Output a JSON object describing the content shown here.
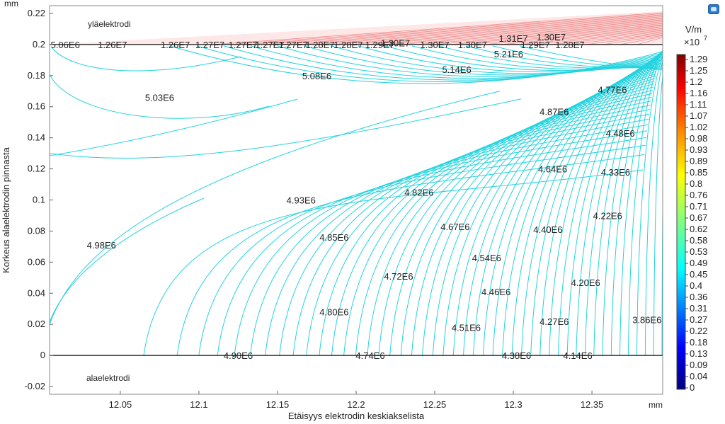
{
  "chart_data": {
    "type": "contour",
    "units": {
      "x": "mm",
      "y": "mm"
    },
    "xlabel": "Etäisyys elektrodin keskiakselista",
    "ylabel": "Korkeus alaelektrodin pinnasta",
    "xlim": [
      12.005,
      12.395
    ],
    "ylim": [
      -0.025,
      0.225
    ],
    "x_ticks": [
      "12.05",
      "12.1",
      "12.15",
      "12.2",
      "12.25",
      "12.3",
      "12.35"
    ],
    "y_ticks": [
      "-0.02",
      "0",
      "0.02",
      "0.04",
      "0.06",
      "0.08",
      "0.1",
      "0.12",
      "0.14",
      "0.16",
      "0.18",
      "0.2",
      "0.22"
    ],
    "region_labels": {
      "upper": "yläelektrodi",
      "lower": "alaelektrodi"
    },
    "colorbar": {
      "unit": "V/m",
      "multiplier": "×10",
      "exponent": "7",
      "ticks": [
        "1.29",
        "1.25",
        "1.2",
        "1.16",
        "1.11",
        "1.07",
        "1.02",
        "0.98",
        "0.93",
        "0.89",
        "0.85",
        "0.8",
        "0.76",
        "0.71",
        "0.67",
        "0.62",
        "0.58",
        "0.53",
        "0.49",
        "0.45",
        "0.4",
        "0.36",
        "0.31",
        "0.27",
        "0.22",
        "0.18",
        "0.13",
        "0.09",
        "0.04",
        "0"
      ],
      "colors": [
        "#000080",
        "#0000ff",
        "#00bfff",
        "#00ffff",
        "#7fff7f",
        "#ffff00",
        "#ff7f00",
        "#ff0000",
        "#800000"
      ]
    },
    "contour_color": "#22d3df",
    "contour_labels": [
      {
        "text": "5.06E6",
        "x": 12.015,
        "y": 0.2
      },
      {
        "text": "1.26E7",
        "x": 12.045,
        "y": 0.2
      },
      {
        "text": "1.26E7",
        "x": 12.085,
        "y": 0.2
      },
      {
        "text": "1.27E7",
        "x": 12.107,
        "y": 0.2
      },
      {
        "text": "1.27E7",
        "x": 12.128,
        "y": 0.2
      },
      {
        "text": "1.27E7",
        "x": 12.145,
        "y": 0.2
      },
      {
        "text": "1.27E7",
        "x": 12.16,
        "y": 0.2
      },
      {
        "text": "1.28E7",
        "x": 12.177,
        "y": 0.2
      },
      {
        "text": "1.28E7",
        "x": 12.195,
        "y": 0.2
      },
      {
        "text": "1.29E7",
        "x": 12.215,
        "y": 0.2
      },
      {
        "text": "1.30E7",
        "x": 12.225,
        "y": 0.201
      },
      {
        "text": "1.30E7",
        "x": 12.25,
        "y": 0.2
      },
      {
        "text": "1.30E7",
        "x": 12.274,
        "y": 0.2
      },
      {
        "text": "1.31E7",
        "x": 12.3,
        "y": 0.204
      },
      {
        "text": "1.30E7",
        "x": 12.324,
        "y": 0.205
      },
      {
        "text": "1.29E7",
        "x": 12.314,
        "y": 0.2
      },
      {
        "text": "1.28E7",
        "x": 12.336,
        "y": 0.2
      },
      {
        "text": "5.21E6",
        "x": 12.297,
        "y": 0.194
      },
      {
        "text": "5.14E6",
        "x": 12.264,
        "y": 0.184
      },
      {
        "text": "5.08E6",
        "x": 12.175,
        "y": 0.18
      },
      {
        "text": "5.03E6",
        "x": 12.075,
        "y": 0.166
      },
      {
        "text": "4.77E6",
        "x": 12.363,
        "y": 0.171
      },
      {
        "text": "4.87E6",
        "x": 12.326,
        "y": 0.157
      },
      {
        "text": "4.48E6",
        "x": 12.368,
        "y": 0.143
      },
      {
        "text": "4.64E6",
        "x": 12.325,
        "y": 0.12
      },
      {
        "text": "4.33E6",
        "x": 12.365,
        "y": 0.118
      },
      {
        "text": "4.93E6",
        "x": 12.165,
        "y": 0.1
      },
      {
        "text": "4.82E6",
        "x": 12.24,
        "y": 0.105
      },
      {
        "text": "4.22E6",
        "x": 12.36,
        "y": 0.09
      },
      {
        "text": "4.67E6",
        "x": 12.263,
        "y": 0.083
      },
      {
        "text": "4.40E6",
        "x": 12.322,
        "y": 0.081
      },
      {
        "text": "4.85E6",
        "x": 12.186,
        "y": 0.076
      },
      {
        "text": "4.98E6",
        "x": 12.038,
        "y": 0.071
      },
      {
        "text": "4.54E6",
        "x": 12.283,
        "y": 0.063
      },
      {
        "text": "4.72E6",
        "x": 12.227,
        "y": 0.051
      },
      {
        "text": "4.20E6",
        "x": 12.346,
        "y": 0.047
      },
      {
        "text": "4.46E6",
        "x": 12.289,
        "y": 0.041
      },
      {
        "text": "4.80E6",
        "x": 12.186,
        "y": 0.028
      },
      {
        "text": "4.27E6",
        "x": 12.326,
        "y": 0.022
      },
      {
        "text": "4.51E6",
        "x": 12.27,
        "y": 0.018
      },
      {
        "text": "3.86E6",
        "x": 12.385,
        "y": 0.023
      },
      {
        "text": "4.90E6",
        "x": 12.125,
        "y": 0.0
      },
      {
        "text": "4.74E6",
        "x": 12.209,
        "y": 0.0
      },
      {
        "text": "4.38E6",
        "x": 12.302,
        "y": 0.0
      },
      {
        "text": "4.14E6",
        "x": 12.341,
        "y": 0.0
      }
    ]
  }
}
